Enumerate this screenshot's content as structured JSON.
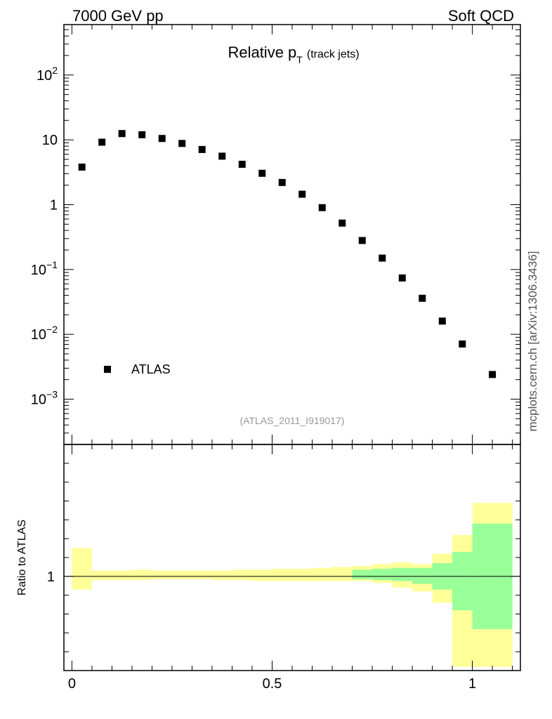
{
  "header": {
    "left": "7000 GeV pp",
    "right": "Soft QCD"
  },
  "side_label": "mcplots.cern.ch [arXiv:1306.3436]",
  "analysis_tag": "(ATLAS_2011_I919017)",
  "chart_data": [
    {
      "type": "scatter",
      "title_main": "Relative p",
      "title_sub": "T",
      "title_suffix": "(track jets)",
      "yscale": "log",
      "xlim": [
        -0.02,
        1.12
      ],
      "ylim": [
        0.0002,
        600
      ],
      "yticks": [
        {
          "value": 100,
          "base": "10",
          "exp": "2"
        },
        {
          "value": 10,
          "base": "10",
          "exp": ""
        },
        {
          "value": 1,
          "base": "1",
          "exp": ""
        },
        {
          "value": 0.1,
          "base": "10",
          "exp": "−1"
        },
        {
          "value": 0.01,
          "base": "10",
          "exp": "−2"
        },
        {
          "value": 0.001,
          "base": "10",
          "exp": "−3"
        }
      ],
      "legend": {
        "label": "ATLAS",
        "placement": "bottom-left"
      },
      "series": [
        {
          "name": "ATLAS",
          "color": "#000000",
          "points": [
            {
              "x": 0.025,
              "y": 3.8
            },
            {
              "x": 0.075,
              "y": 9.2
            },
            {
              "x": 0.125,
              "y": 12.5
            },
            {
              "x": 0.175,
              "y": 12.0
            },
            {
              "x": 0.225,
              "y": 10.5
            },
            {
              "x": 0.275,
              "y": 8.8
            },
            {
              "x": 0.325,
              "y": 7.1
            },
            {
              "x": 0.375,
              "y": 5.6
            },
            {
              "x": 0.425,
              "y": 4.2
            },
            {
              "x": 0.475,
              "y": 3.05
            },
            {
              "x": 0.525,
              "y": 2.2
            },
            {
              "x": 0.575,
              "y": 1.45
            },
            {
              "x": 0.625,
              "y": 0.9
            },
            {
              "x": 0.675,
              "y": 0.52
            },
            {
              "x": 0.725,
              "y": 0.28
            },
            {
              "x": 0.775,
              "y": 0.15
            },
            {
              "x": 0.825,
              "y": 0.074
            },
            {
              "x": 0.875,
              "y": 0.036
            },
            {
              "x": 0.925,
              "y": 0.016
            },
            {
              "x": 0.975,
              "y": 0.0071
            },
            {
              "x": 1.05,
              "y": 0.0024
            }
          ]
        }
      ]
    },
    {
      "type": "area",
      "ylabel": "Ratio to ATLAS",
      "xlim": [
        -0.02,
        1.12
      ],
      "ylim": [
        0.5,
        1.7
      ],
      "xticks": [
        {
          "value": 0,
          "label": "0"
        },
        {
          "value": 0.5,
          "label": "0.5"
        },
        {
          "value": 1,
          "label": "1"
        }
      ],
      "yticks": [
        {
          "value": 1,
          "label": "1"
        }
      ],
      "bands": [
        {
          "name": "",
          "color": "#ffff99",
          "bins": [
            {
              "x0": 0.0,
              "x1": 0.05,
              "lo": 0.93,
              "hi": 1.15
            },
            {
              "x0": 0.05,
              "x1": 0.1,
              "lo": 0.98,
              "hi": 1.03
            },
            {
              "x0": 0.1,
              "x1": 0.15,
              "lo": 0.98,
              "hi": 1.03
            },
            {
              "x0": 0.15,
              "x1": 0.2,
              "lo": 0.98,
              "hi": 1.035
            },
            {
              "x0": 0.2,
              "x1": 0.25,
              "lo": 0.985,
              "hi": 1.03
            },
            {
              "x0": 0.25,
              "x1": 0.3,
              "lo": 0.985,
              "hi": 1.03
            },
            {
              "x0": 0.3,
              "x1": 0.35,
              "lo": 0.985,
              "hi": 1.03
            },
            {
              "x0": 0.35,
              "x1": 0.4,
              "lo": 0.98,
              "hi": 1.03
            },
            {
              "x0": 0.4,
              "x1": 0.45,
              "lo": 0.98,
              "hi": 1.035
            },
            {
              "x0": 0.45,
              "x1": 0.5,
              "lo": 0.975,
              "hi": 1.035
            },
            {
              "x0": 0.5,
              "x1": 0.55,
              "lo": 0.975,
              "hi": 1.04
            },
            {
              "x0": 0.55,
              "x1": 0.6,
              "lo": 0.975,
              "hi": 1.04
            },
            {
              "x0": 0.6,
              "x1": 0.65,
              "lo": 0.975,
              "hi": 1.045
            },
            {
              "x0": 0.65,
              "x1": 0.7,
              "lo": 0.975,
              "hi": 1.05
            },
            {
              "x0": 0.7,
              "x1": 0.75,
              "lo": 0.975,
              "hi": 1.055
            },
            {
              "x0": 0.75,
              "x1": 0.8,
              "lo": 0.965,
              "hi": 1.065
            },
            {
              "x0": 0.8,
              "x1": 0.85,
              "lo": 0.94,
              "hi": 1.075
            },
            {
              "x0": 0.85,
              "x1": 0.9,
              "lo": 0.92,
              "hi": 1.065
            },
            {
              "x0": 0.9,
              "x1": 0.95,
              "lo": 0.86,
              "hi": 1.12
            },
            {
              "x0": 0.95,
              "x1": 1.0,
              "lo": 0.52,
              "hi": 1.22
            },
            {
              "x0": 1.0,
              "x1": 1.1,
              "lo": 0.52,
              "hi": 1.39
            }
          ]
        },
        {
          "name": "",
          "color": "#99ff99",
          "bins": [
            {
              "x0": 0.7,
              "x1": 0.75,
              "lo": 0.985,
              "hi": 1.035
            },
            {
              "x0": 0.75,
              "x1": 0.8,
              "lo": 0.98,
              "hi": 1.04
            },
            {
              "x0": 0.8,
              "x1": 0.85,
              "lo": 0.975,
              "hi": 1.045
            },
            {
              "x0": 0.85,
              "x1": 0.9,
              "lo": 0.96,
              "hi": 1.045
            },
            {
              "x0": 0.9,
              "x1": 0.95,
              "lo": 0.93,
              "hi": 1.07
            },
            {
              "x0": 0.95,
              "x1": 1.0,
              "lo": 0.82,
              "hi": 1.13
            },
            {
              "x0": 1.0,
              "x1": 1.1,
              "lo": 0.72,
              "hi": 1.28
            }
          ]
        }
      ]
    }
  ]
}
